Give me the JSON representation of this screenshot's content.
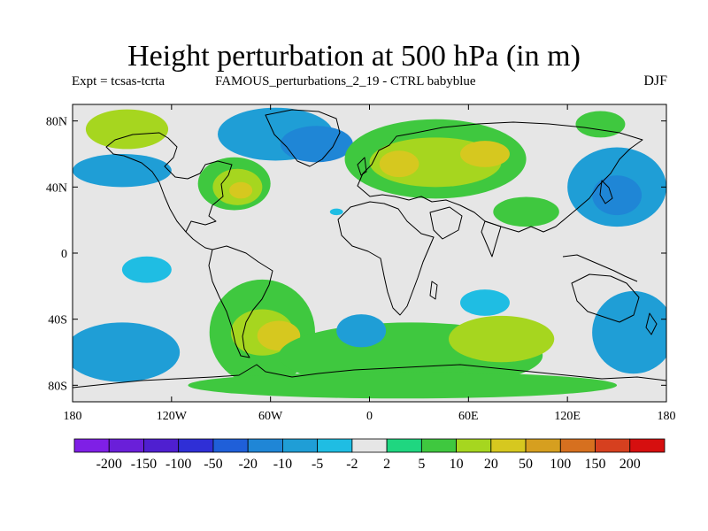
{
  "title": "Height perturbation at 500 hPa (in m)",
  "subtitle_left": "Expt = tcsas-tcrta",
  "subtitle_center": "FAMOUS_perturbations_2_19 - CTRL babyblue",
  "subtitle_right": "DJF",
  "chart_data": {
    "type": "heatmap",
    "projection": "cylindrical-equidistant",
    "xlim": [
      -180,
      180
    ],
    "ylim": [
      -90,
      90
    ],
    "x_ticks": [
      {
        "value": -180,
        "label": "180"
      },
      {
        "value": -120,
        "label": "120W"
      },
      {
        "value": -60,
        "label": "60W"
      },
      {
        "value": 0,
        "label": "0"
      },
      {
        "value": 60,
        "label": "60E"
      },
      {
        "value": 120,
        "label": "120E"
      },
      {
        "value": 180,
        "label": "180"
      }
    ],
    "y_ticks": [
      {
        "value": 80,
        "label": "80N"
      },
      {
        "value": 40,
        "label": "40N"
      },
      {
        "value": 0,
        "label": "0"
      },
      {
        "value": -40,
        "label": "40S"
      },
      {
        "value": -80,
        "label": "80S"
      }
    ],
    "background_color": "#e6e6e6",
    "levels": [
      -200,
      -150,
      -100,
      -50,
      -20,
      -10,
      -5,
      -2,
      2,
      5,
      10,
      20,
      50,
      100,
      150,
      200
    ],
    "level_labels": [
      "-200",
      "-150",
      "-100",
      "-50",
      "-20",
      "-10",
      "-5",
      "-2",
      "2",
      "5",
      "10",
      "20",
      "50",
      "100",
      "150",
      "200"
    ],
    "colors": [
      "#7f1fe6",
      "#6a1fd9",
      "#4f1fd0",
      "#2f2fd6",
      "#1f5fd9",
      "#1f86d6",
      "#1f9ed6",
      "#1fbde3",
      "#e6e6e6",
      "#1fd680",
      "#3fc83f",
      "#a6d61f",
      "#d6c81f",
      "#d69f1f",
      "#d6701f",
      "#d6401f",
      "#d60f0f"
    ],
    "regions": [
      {
        "lon": -147,
        "lat": 75,
        "rx": 25,
        "ry": 12,
        "value": 10
      },
      {
        "lon": -150,
        "lat": 50,
        "rx": 30,
        "ry": 10,
        "value": -10
      },
      {
        "lon": -57,
        "lat": 72,
        "rx": 35,
        "ry": 16,
        "value": -10
      },
      {
        "lon": -32,
        "lat": 66,
        "rx": 22,
        "ry": 11,
        "value": -20
      },
      {
        "lon": -82,
        "lat": 42,
        "rx": 22,
        "ry": 16,
        "value": 5
      },
      {
        "lon": -80,
        "lat": 40,
        "rx": 15,
        "ry": 11,
        "value": 10
      },
      {
        "lon": -78,
        "lat": 38,
        "rx": 7,
        "ry": 5,
        "value": 20
      },
      {
        "lon": 40,
        "lat": 57,
        "rx": 55,
        "ry": 24,
        "value": 5
      },
      {
        "lon": 40,
        "lat": 55,
        "rx": 40,
        "ry": 15,
        "value": 10
      },
      {
        "lon": 18,
        "lat": 54,
        "rx": 12,
        "ry": 8,
        "value": 20
      },
      {
        "lon": 70,
        "lat": 60,
        "rx": 15,
        "ry": 8,
        "value": 20
      },
      {
        "lon": 140,
        "lat": 78,
        "rx": 15,
        "ry": 8,
        "value": 5
      },
      {
        "lon": 150,
        "lat": 40,
        "rx": 30,
        "ry": 24,
        "value": -10
      },
      {
        "lon": 150,
        "lat": 35,
        "rx": 15,
        "ry": 12,
        "value": -20
      },
      {
        "lon": 95,
        "lat": 25,
        "rx": 20,
        "ry": 9,
        "value": 5
      },
      {
        "lon": -20,
        "lat": 25,
        "rx": 4,
        "ry": 2,
        "value": -5
      },
      {
        "lon": -135,
        "lat": -10,
        "rx": 15,
        "ry": 8,
        "value": -5
      },
      {
        "lon": 70,
        "lat": -30,
        "rx": 15,
        "ry": 8,
        "value": -5
      },
      {
        "lon": -65,
        "lat": -48,
        "rx": 32,
        "ry": 32,
        "value": 5
      },
      {
        "lon": -65,
        "lat": -48,
        "rx": 19,
        "ry": 14,
        "value": 10
      },
      {
        "lon": -55,
        "lat": -50,
        "rx": 13,
        "ry": 9,
        "value": 20
      },
      {
        "lon": 25,
        "lat": -62,
        "rx": 80,
        "ry": 20,
        "value": 5
      },
      {
        "lon": 80,
        "lat": -52,
        "rx": 32,
        "ry": 14,
        "value": 10
      },
      {
        "lon": -5,
        "lat": -47,
        "rx": 15,
        "ry": 10,
        "value": -10
      },
      {
        "lon": 160,
        "lat": -48,
        "rx": 25,
        "ry": 25,
        "value": -10
      },
      {
        "lon": -150,
        "lat": -60,
        "rx": 35,
        "ry": 18,
        "value": -10
      },
      {
        "lon": 20,
        "lat": -80,
        "rx": 130,
        "ry": 8,
        "value": 5
      }
    ]
  }
}
